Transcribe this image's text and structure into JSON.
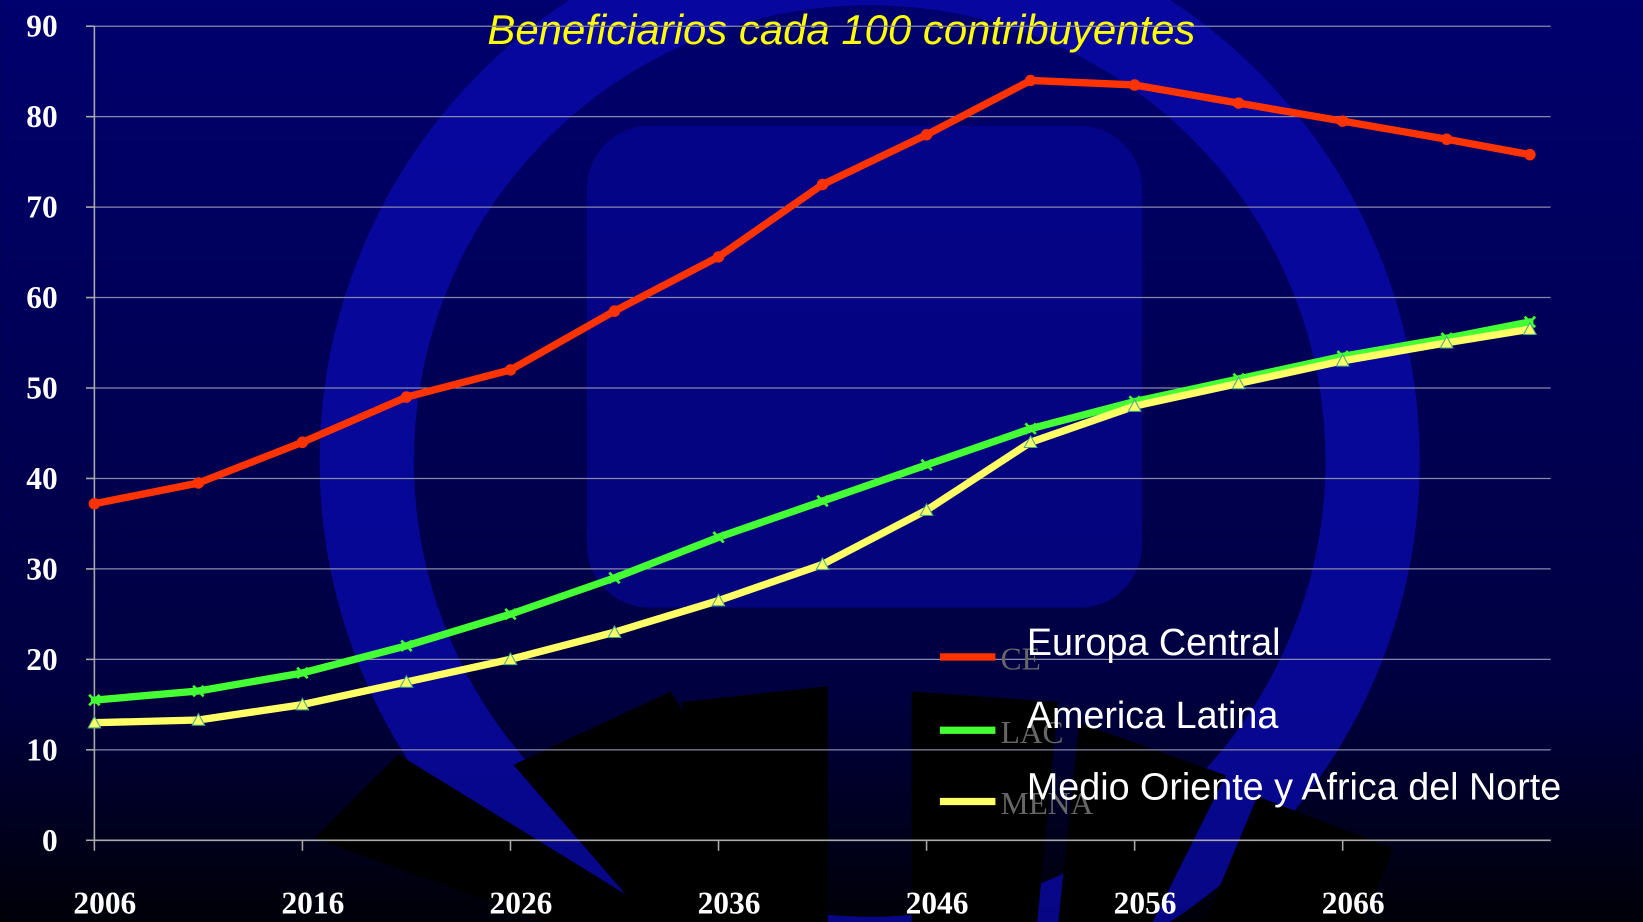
{
  "chart_data": {
    "type": "line",
    "title": "Beneficiarios cada 100 contribuyentes",
    "x": [
      2006,
      2011,
      2016,
      2021,
      2026,
      2031,
      2036,
      2041,
      2046,
      2051,
      2056,
      2061,
      2066,
      2071,
      2075
    ],
    "series": [
      {
        "name": "Europa Central",
        "short_name": "CE",
        "color": "#ff3300",
        "values": [
          37.2,
          39.5,
          44,
          49,
          52,
          58.5,
          64.5,
          72.5,
          78,
          84,
          83.5,
          81.5,
          79.5,
          77.5,
          75.8
        ]
      },
      {
        "name": "America Latina",
        "short_name": "LAC",
        "color": "#44ff33",
        "values": [
          15.5,
          16.5,
          18.5,
          21.5,
          25,
          29,
          33.5,
          37.5,
          41.5,
          45.5,
          48.5,
          51,
          53.5,
          55.5,
          57.3
        ]
      },
      {
        "name": "Medio Oriente y Africa del Norte",
        "short_name": "MENA",
        "color": "#ffff66",
        "values": [
          13,
          13.3,
          15,
          17.5,
          20,
          23,
          26.5,
          30.5,
          36.5,
          44,
          48,
          50.5,
          53,
          55,
          56.5
        ]
      }
    ],
    "xlim": [
      2006,
      2076
    ],
    "xticks": [
      2006,
      2016,
      2026,
      2036,
      2046,
      2056,
      2066
    ],
    "ylim": [
      0,
      90
    ],
    "yticks": [
      0,
      10,
      20,
      30,
      40,
      50,
      60,
      70,
      80,
      90
    ],
    "grid": true,
    "legend": "lower right"
  }
}
